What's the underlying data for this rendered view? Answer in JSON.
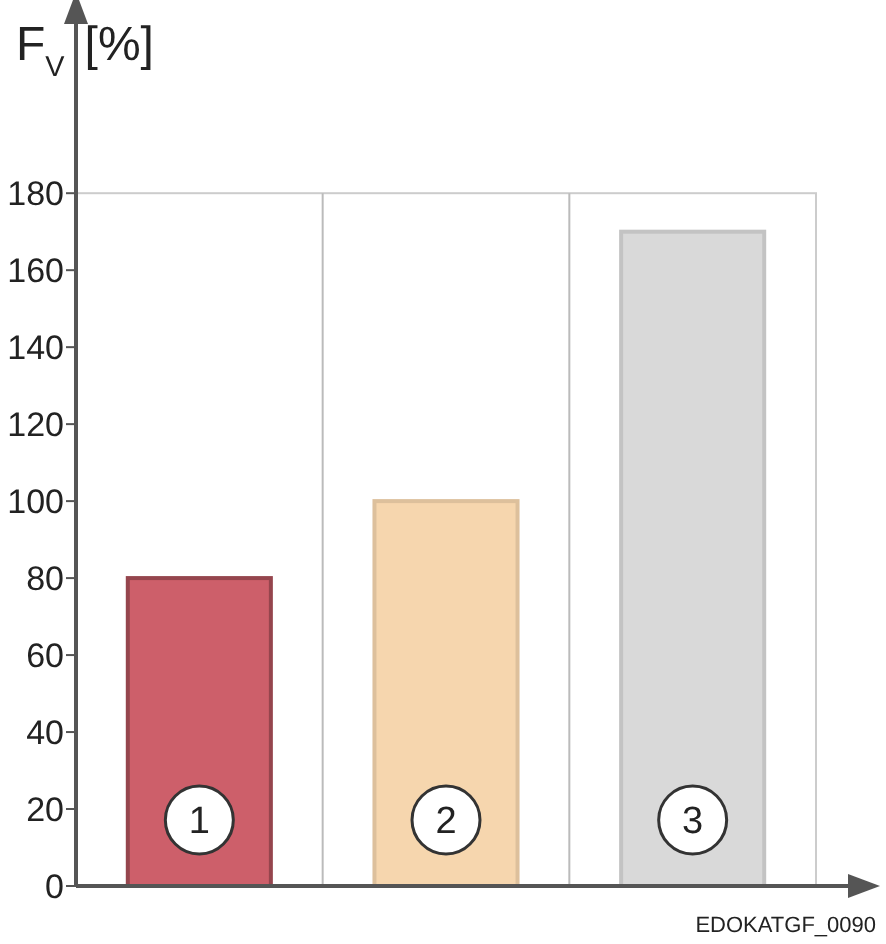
{
  "chart_data": {
    "type": "bar",
    "ylabel": "F$_{V}$[%]",
    "categories": [
      "1",
      "2",
      "3"
    ],
    "values": [
      80,
      100,
      170
    ],
    "colors": [
      "#cd5f6a",
      "#f6d6ae",
      "#d9d9d9"
    ],
    "ylim": [
      0,
      225
    ],
    "yticks": [
      0,
      20,
      40,
      60,
      80,
      100,
      120,
      140,
      160,
      180
    ],
    "grid": "x",
    "annotations": [
      "EDOKATGF_0090"
    ]
  }
}
